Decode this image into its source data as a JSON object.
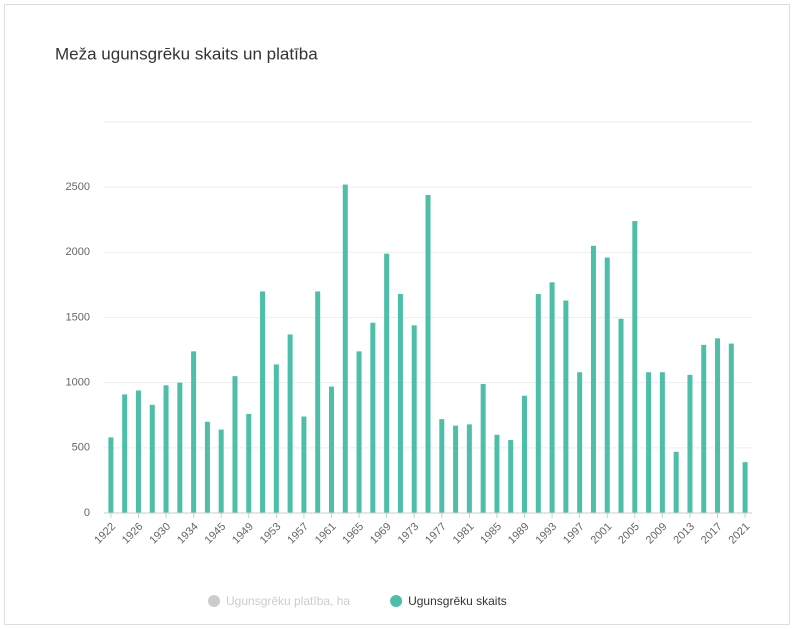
{
  "chart_data": {
    "type": "bar",
    "title": "Meža ugunsgrēku skaits un platība",
    "categories": [
      "1922",
      null,
      "1926",
      null,
      "1930",
      null,
      "1934",
      null,
      "1945",
      null,
      "1949",
      null,
      "1953",
      null,
      "1957",
      null,
      "1961",
      null,
      "1965",
      null,
      "1969",
      null,
      "1973",
      null,
      "1977",
      null,
      "1981",
      null,
      "1985",
      null,
      "1989",
      null,
      "1993",
      null,
      "1997",
      null,
      "2001",
      null,
      "2005",
      null,
      "2009",
      null,
      "2013",
      null,
      "2017",
      null,
      "2021"
    ],
    "series": [
      {
        "name": "Ugunsgrēku platība, ha",
        "color": "#cccccc",
        "visible": false
      },
      {
        "name": "Ugunsgrēku skaits",
        "color": "#4dbfa8",
        "visible": true,
        "values": [
          580,
          910,
          940,
          830,
          980,
          1000,
          1240,
          700,
          640,
          1050,
          760,
          1700,
          1140,
          1370,
          740,
          1700,
          970,
          2520,
          1240,
          1460,
          1990,
          1680,
          1440,
          2440,
          720,
          670,
          680,
          990,
          600,
          560,
          900,
          1680,
          1770,
          1630,
          1080,
          2050,
          1960,
          1490,
          2240,
          1080,
          1080,
          470,
          1060,
          1290,
          1340,
          1300,
          390
        ]
      }
    ],
    "ylim": [
      0,
      3000
    ],
    "yticks": [
      0,
      500,
      1000,
      1500,
      2000,
      2500
    ],
    "grid": true
  }
}
